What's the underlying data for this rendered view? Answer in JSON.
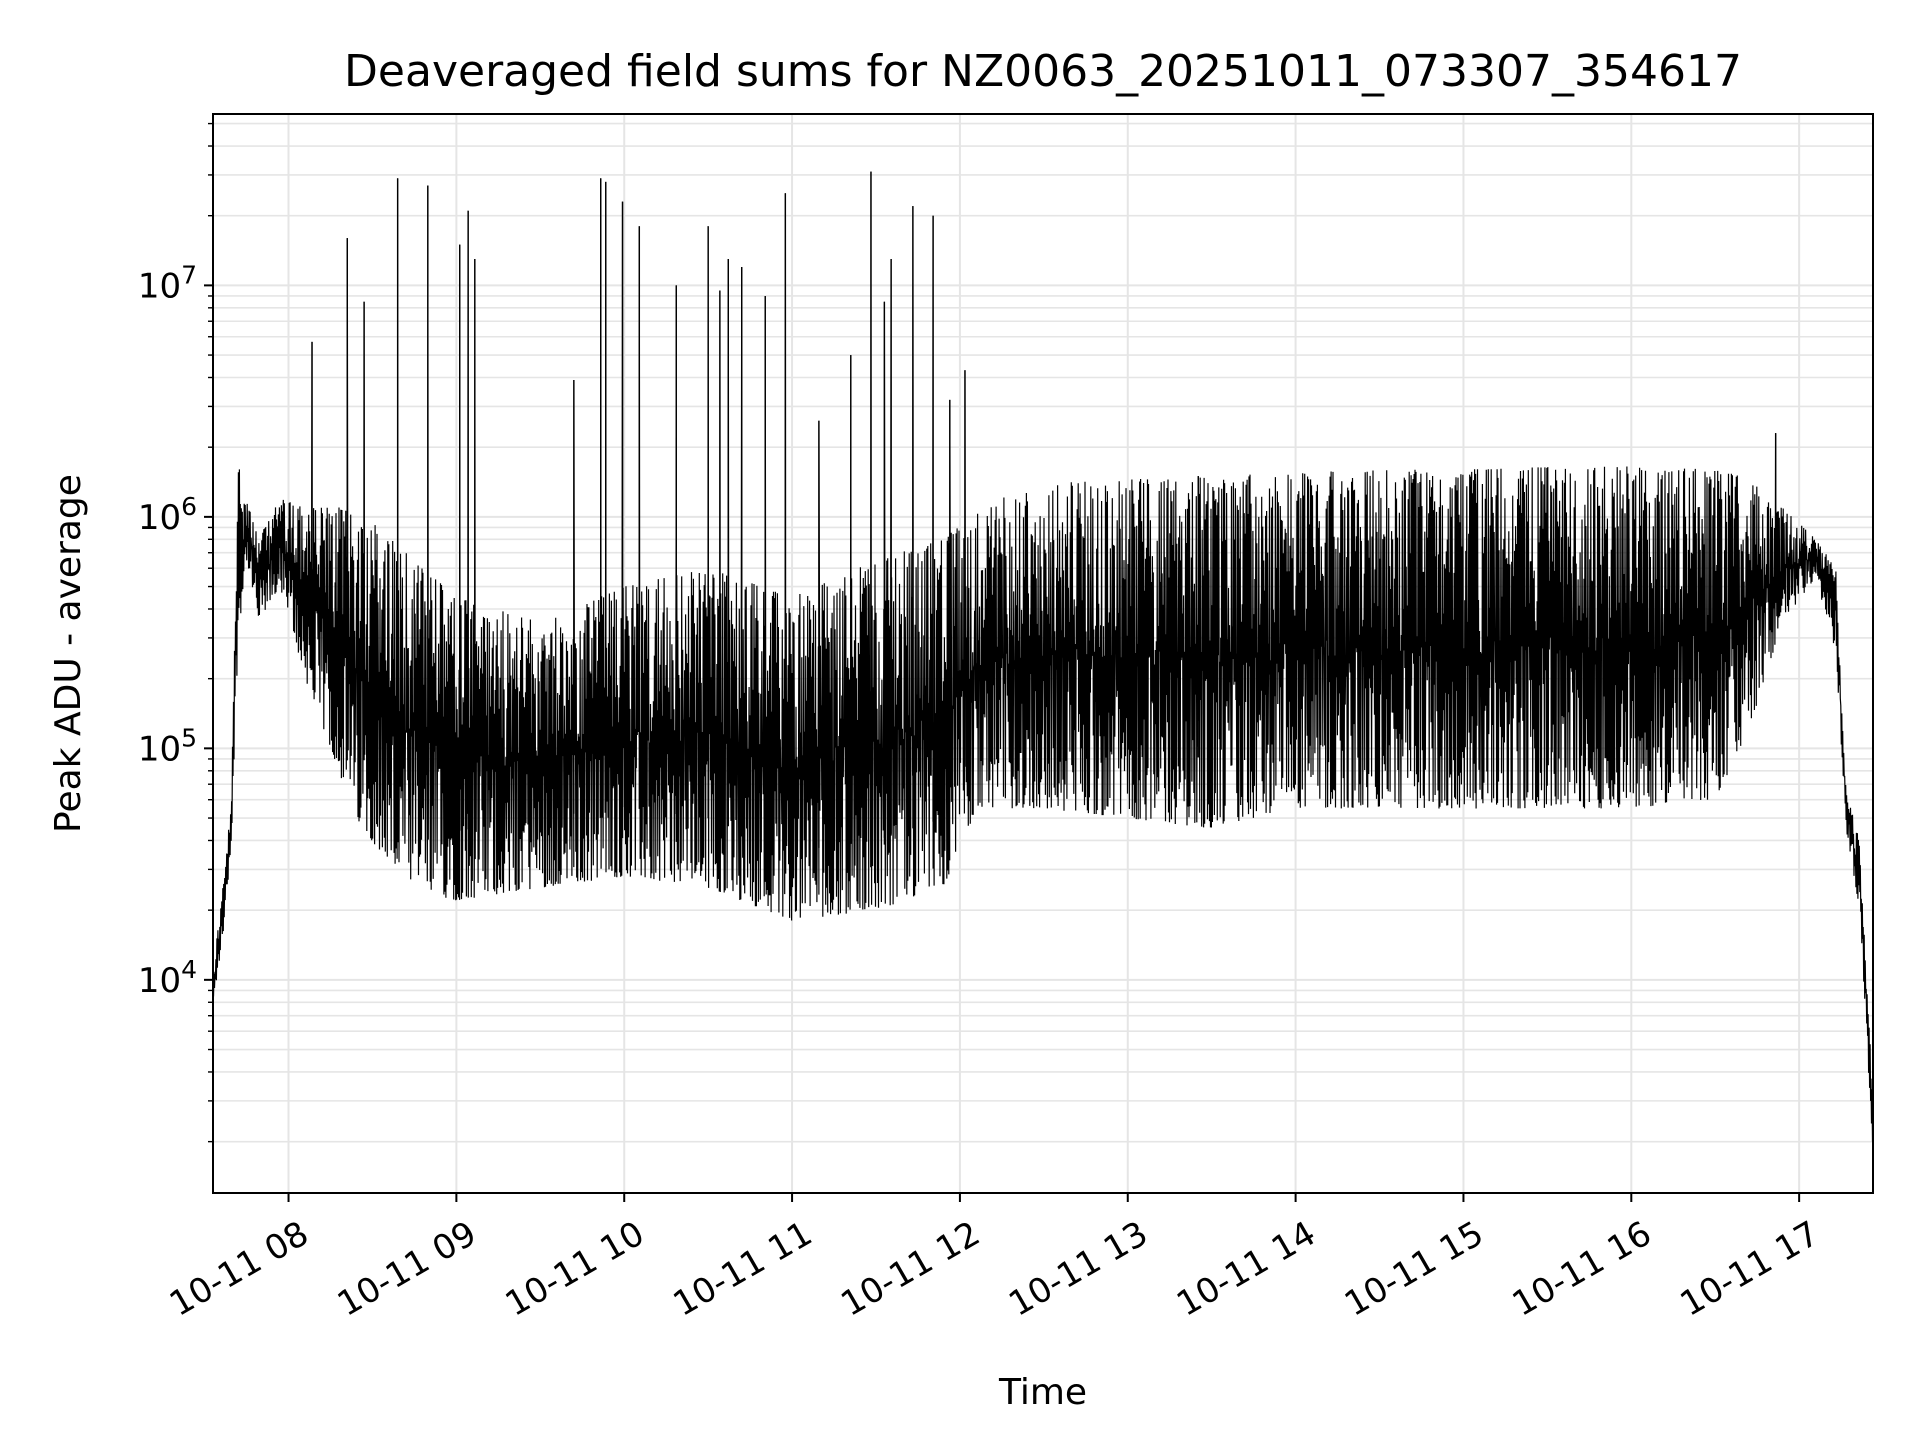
{
  "chart_data": {
    "type": "line",
    "title": "Deaveraged field sums for NZ0063_20251011_073307_354617",
    "xlabel": "Time",
    "ylabel": "Peak ADU - average",
    "yscale": "log",
    "xlim_hours": [
      7.55,
      17.44
    ],
    "ylim": [
      1200,
      55000000
    ],
    "grid": true,
    "legend": "none",
    "x_ticks": [
      {
        "label": "10-11 08",
        "hour": 8
      },
      {
        "label": "10-11 09",
        "hour": 9
      },
      {
        "label": "10-11 10",
        "hour": 10
      },
      {
        "label": "10-11 11",
        "hour": 11
      },
      {
        "label": "10-11 12",
        "hour": 12
      },
      {
        "label": "10-11 13",
        "hour": 13
      },
      {
        "label": "10-11 14",
        "hour": 14
      },
      {
        "label": "10-11 15",
        "hour": 15
      },
      {
        "label": "10-11 16",
        "hour": 16
      },
      {
        "label": "10-11 17",
        "hour": 17
      }
    ],
    "y_ticks": [
      {
        "base": "10",
        "exp": "4",
        "value": 10000
      },
      {
        "base": "10",
        "exp": "5",
        "value": 100000
      },
      {
        "base": "10",
        "exp": "6",
        "value": 1000000
      },
      {
        "base": "10",
        "exp": "7",
        "value": 10000000
      }
    ],
    "series": [
      {
        "name": "Peak ADU - average",
        "color": "#000000",
        "envelope": [
          {
            "hour": 7.55,
            "low": 7500,
            "high": 11000
          },
          {
            "hour": 7.62,
            "low": 18000,
            "high": 30000
          },
          {
            "hour": 7.66,
            "low": 40000,
            "high": 60000
          },
          {
            "hour": 7.7,
            "low": 300000,
            "high": 1800000
          },
          {
            "hour": 7.75,
            "low": 650000,
            "high": 1300000
          },
          {
            "hour": 7.82,
            "low": 350000,
            "high": 800000
          },
          {
            "hour": 7.95,
            "low": 500000,
            "high": 1200000
          },
          {
            "hour": 8.1,
            "low": 200000,
            "high": 1100000
          },
          {
            "hour": 8.4,
            "low": 50000,
            "high": 1100000
          },
          {
            "hour": 8.7,
            "low": 25000,
            "high": 700000
          },
          {
            "hour": 9.0,
            "low": 22000,
            "high": 450000
          },
          {
            "hour": 9.5,
            "low": 25000,
            "high": 350000
          },
          {
            "hour": 10.0,
            "low": 28000,
            "high": 500000
          },
          {
            "hour": 10.5,
            "low": 25000,
            "high": 600000
          },
          {
            "hour": 11.0,
            "low": 18000,
            "high": 450000
          },
          {
            "hour": 11.5,
            "low": 20000,
            "high": 650000
          },
          {
            "hour": 11.9,
            "low": 25000,
            "high": 800000
          },
          {
            "hour": 12.1,
            "low": 55000,
            "high": 1100000
          },
          {
            "hour": 12.5,
            "low": 55000,
            "high": 1400000
          },
          {
            "hour": 13.0,
            "low": 50000,
            "high": 1450000
          },
          {
            "hour": 13.5,
            "low": 45000,
            "high": 1500000
          },
          {
            "hour": 14.0,
            "low": 55000,
            "high": 1550000
          },
          {
            "hour": 14.5,
            "low": 55000,
            "high": 1600000
          },
          {
            "hour": 15.0,
            "low": 55000,
            "high": 1600000
          },
          {
            "hour": 15.5,
            "low": 55000,
            "high": 1650000
          },
          {
            "hour": 16.0,
            "low": 55000,
            "high": 1650000
          },
          {
            "hour": 16.5,
            "low": 60000,
            "high": 1600000
          },
          {
            "hour": 16.7,
            "low": 120000,
            "high": 1500000
          },
          {
            "hour": 16.9,
            "low": 350000,
            "high": 1100000
          },
          {
            "hour": 17.1,
            "low": 550000,
            "high": 800000
          },
          {
            "hour": 17.22,
            "low": 250000,
            "high": 600000
          },
          {
            "hour": 17.28,
            "low": 45000,
            "high": 65000
          },
          {
            "hour": 17.36,
            "low": 20000,
            "high": 40000
          },
          {
            "hour": 17.44,
            "low": 1800,
            "high": 3000
          }
        ],
        "spikes": [
          {
            "hour": 8.14,
            "value": 5700000
          },
          {
            "hour": 8.35,
            "value": 16000000
          },
          {
            "hour": 8.45,
            "value": 8500000
          },
          {
            "hour": 8.65,
            "value": 29000000
          },
          {
            "hour": 8.83,
            "value": 27000000
          },
          {
            "hour": 9.02,
            "value": 15000000
          },
          {
            "hour": 9.07,
            "value": 21000000
          },
          {
            "hour": 9.11,
            "value": 13000000
          },
          {
            "hour": 9.7,
            "value": 3900000
          },
          {
            "hour": 9.86,
            "value": 29000000
          },
          {
            "hour": 9.89,
            "value": 28000000
          },
          {
            "hour": 9.99,
            "value": 23000000
          },
          {
            "hour": 10.09,
            "value": 18000000
          },
          {
            "hour": 10.31,
            "value": 2200000
          },
          {
            "hour": 10.31,
            "value": 10000000
          },
          {
            "hour": 10.5,
            "value": 18000000
          },
          {
            "hour": 10.57,
            "value": 9500000
          },
          {
            "hour": 10.62,
            "value": 13000000
          },
          {
            "hour": 10.7,
            "value": 12000000
          },
          {
            "hour": 10.84,
            "value": 9000000
          },
          {
            "hour": 10.96,
            "value": 25000000
          },
          {
            "hour": 11.16,
            "value": 2600000
          },
          {
            "hour": 11.35,
            "value": 5000000
          },
          {
            "hour": 11.47,
            "value": 31000000
          },
          {
            "hour": 11.55,
            "value": 8500000
          },
          {
            "hour": 11.59,
            "value": 13000000
          },
          {
            "hour": 11.72,
            "value": 22000000
          },
          {
            "hour": 11.84,
            "value": 20000000
          },
          {
            "hour": 11.94,
            "value": 3200000
          },
          {
            "hour": 12.03,
            "value": 4300000
          },
          {
            "hour": 13.42,
            "value": 1500000
          },
          {
            "hour": 16.86,
            "value": 2300000
          }
        ]
      }
    ]
  }
}
